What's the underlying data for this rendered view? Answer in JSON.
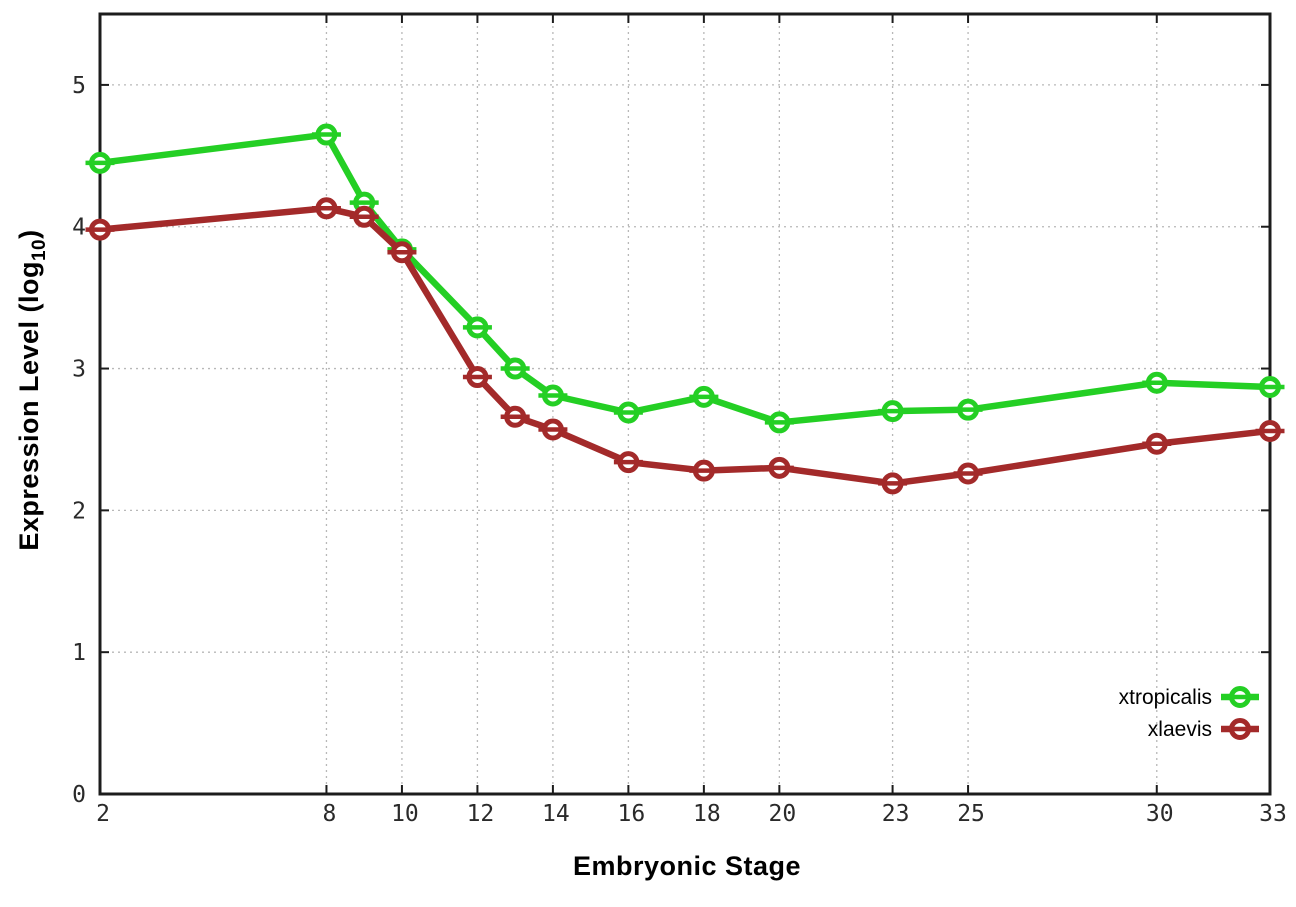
{
  "chart_data": {
    "type": "line",
    "x": [
      2,
      8,
      9,
      10,
      12,
      13,
      14,
      16,
      18,
      20,
      23,
      25,
      30,
      33
    ],
    "series": [
      {
        "name": "xtropicalis",
        "color": "#24cf24",
        "values": [
          4.45,
          4.65,
          4.17,
          3.84,
          3.29,
          3.0,
          2.81,
          2.69,
          2.8,
          2.62,
          2.7,
          2.71,
          2.9,
          2.87
        ]
      },
      {
        "name": "xlaevis",
        "color": "#a32a2a",
        "values": [
          3.98,
          4.13,
          4.07,
          3.82,
          2.94,
          2.66,
          2.57,
          2.34,
          2.28,
          2.3,
          2.19,
          2.26,
          2.47,
          2.56
        ]
      }
    ],
    "title": "",
    "xlabel": "Embryonic Stage",
    "ylabel": "Expression Level (log10)",
    "ylabel_parts": {
      "main": "Expression Level (log",
      "sub": "10",
      "end": ")"
    },
    "xticks": [
      2,
      8,
      10,
      12,
      14,
      16,
      18,
      20,
      23,
      25,
      30,
      33
    ],
    "yticks": [
      0,
      1,
      2,
      3,
      4,
      5
    ],
    "xlim": [
      2,
      33
    ],
    "ylim": [
      0,
      5.5
    ],
    "grid": true,
    "grid_style": "dotted",
    "legend_position": "inside-bottom-right",
    "legend_entries": [
      "xtropicalis",
      "xlaevis"
    ],
    "marker": "open-circle-with-horizontal-errorbar-cap",
    "colors": {
      "background": "#ffffff",
      "border": "#1c1c1c",
      "grid": "#b8b8b8",
      "tick_text": "#2a2a2a",
      "xtropicalis": "#24cf24",
      "xlaevis": "#a32a2a"
    }
  }
}
